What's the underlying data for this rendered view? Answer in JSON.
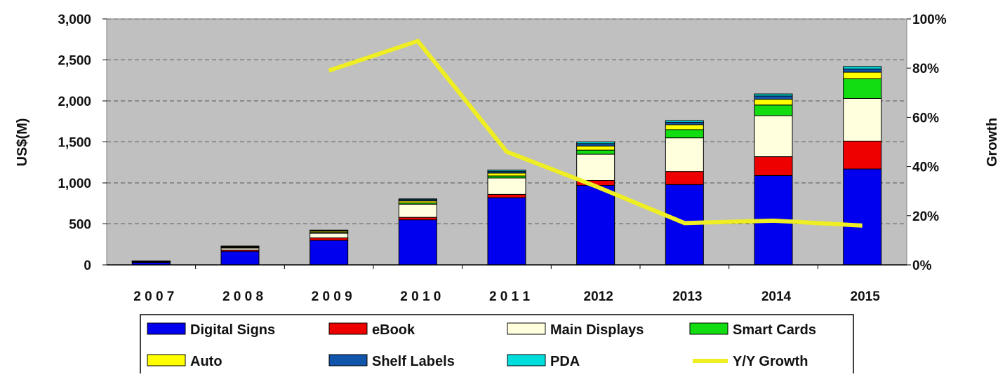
{
  "chart_data": {
    "type": "bar",
    "stacked": true,
    "categories": [
      "2 0 0 7",
      "2 0 0 8",
      "2 0 0 9",
      "2 0 1 0",
      "2 0 1 1",
      "2012",
      "2013",
      "2014",
      "2015"
    ],
    "ylabel": "US$(M)",
    "y2label": "Growth",
    "ylim": [
      0,
      3000
    ],
    "y2lim": [
      0,
      100
    ],
    "y_ticks": [
      "0",
      "500",
      "1,000",
      "1,500",
      "2,000",
      "2,500",
      "3,000"
    ],
    "y2_ticks": [
      "0%",
      "20%",
      "40%",
      "60%",
      "80%",
      "100%"
    ],
    "grid": true,
    "plot_background": "#c0c0c0",
    "legend_position": "bottom",
    "series": [
      {
        "name": "Digital Signs",
        "color": "#0000ee",
        "values": [
          30,
          165,
          300,
          550,
          820,
          970,
          980,
          1090,
          1170
        ]
      },
      {
        "name": "eBook",
        "color": "#ee0000",
        "values": [
          5,
          15,
          30,
          30,
          40,
          60,
          160,
          230,
          340
        ]
      },
      {
        "name": "Main Displays",
        "color": "#ffffdd",
        "values": [
          5,
          25,
          55,
          160,
          200,
          320,
          410,
          500,
          520
        ]
      },
      {
        "name": "Smart Cards",
        "color": "#11dd11",
        "values": [
          2,
          5,
          10,
          15,
          25,
          50,
          100,
          130,
          240
        ]
      },
      {
        "name": "Auto",
        "color": "#ffff00",
        "values": [
          3,
          10,
          15,
          25,
          35,
          50,
          60,
          70,
          80
        ]
      },
      {
        "name": "Shelf Labels",
        "color": "#1155aa",
        "values": [
          2,
          5,
          10,
          15,
          20,
          30,
          30,
          40,
          40
        ]
      },
      {
        "name": "PDA",
        "color": "#00dddd",
        "values": [
          2,
          5,
          5,
          10,
          15,
          20,
          20,
          25,
          30
        ]
      }
    ],
    "line_series": {
      "name": "Y/Y  Growth",
      "color": "#eeee22",
      "axis": "right",
      "values": [
        null,
        null,
        79,
        91,
        46,
        32,
        17,
        18,
        16
      ]
    }
  }
}
